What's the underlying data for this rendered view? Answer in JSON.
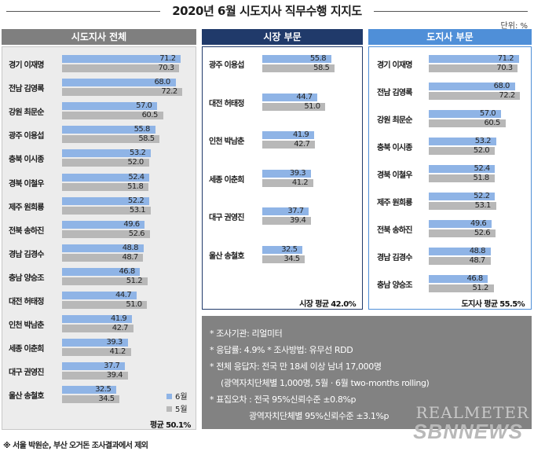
{
  "title": "2020년 6월 시도지사 직무수행 지지도",
  "unit": "단위: %",
  "footnote": "※ 서울 박원순, 부산 오거돈 조사결과에서 제외",
  "watermark_top": "REALMETER",
  "watermark_bottom": "SBNNEWS",
  "colors": {
    "jun": "#8fb4e6",
    "may": "#b8b8b8",
    "mayor_header": "#203a6a",
    "governor_header": "#4f8fd8",
    "overall_header": "#7f7f7f"
  },
  "notes": [
    "* 조사기관: 리얼미터",
    "* 응답률: 4.9% * 조사방법: 유무선 RDD",
    "* 전체 응답자: 전국 만 18세 이상 남녀 17,000명",
    "(광역자치단체별 1,000명, 5월 · 6월 two-months rolling)",
    "* 표집오차 : 전국 95%신뢰수준 ±0.8%p",
    "광역자치단체별 95%신뢰수준 ±3.1%p"
  ],
  "chart_data": [
    {
      "type": "bar",
      "orientation": "horizontal",
      "panel_title": "시도지사 전체",
      "categories": [
        "경기 이재명",
        "전남 김영록",
        "강원 최문순",
        "광주 이용섭",
        "충북 이시종",
        "경북 이철우",
        "제주 원희룡",
        "전북 송하진",
        "경남 김경수",
        "충남 양승조",
        "대전 허태정",
        "인천 박남춘",
        "세종 이춘희",
        "대구 권영진",
        "울산 송철호"
      ],
      "series": [
        {
          "name": "6월",
          "values": [
            71.2,
            68.0,
            57.0,
            55.8,
            53.2,
            52.4,
            52.2,
            49.6,
            48.8,
            46.8,
            44.7,
            41.9,
            39.3,
            37.7,
            32.5
          ]
        },
        {
          "name": "5월",
          "values": [
            70.3,
            72.2,
            60.5,
            58.5,
            52.0,
            51.8,
            53.1,
            52.6,
            48.7,
            51.2,
            51.0,
            42.7,
            41.2,
            39.4,
            34.5
          ]
        }
      ],
      "average_label": "평균 50.1%",
      "legend": [
        "6월",
        "5월"
      ],
      "legend_position": "bottom-right"
    },
    {
      "type": "bar",
      "orientation": "horizontal",
      "panel_title": "시장 부문",
      "categories": [
        "광주 이용섭",
        "대전 허태정",
        "인천 박남춘",
        "세종 이춘희",
        "대구 권영진",
        "울산 송철호"
      ],
      "series": [
        {
          "name": "6월",
          "values": [
            55.8,
            44.7,
            41.9,
            39.3,
            37.7,
            32.5
          ]
        },
        {
          "name": "5월",
          "values": [
            58.5,
            51.0,
            42.7,
            41.2,
            39.4,
            34.5
          ]
        }
      ],
      "average_label": "시장 평균 42.0%"
    },
    {
      "type": "bar",
      "orientation": "horizontal",
      "panel_title": "도지사 부문",
      "categories": [
        "경기 이재명",
        "전남 김영록",
        "강원 최문순",
        "충북 이시종",
        "경북 이철우",
        "제주 원희룡",
        "전북 송하진",
        "경남 김경수",
        "충남 양승조"
      ],
      "series": [
        {
          "name": "6월",
          "values": [
            71.2,
            68.0,
            57.0,
            53.2,
            52.4,
            52.2,
            49.6,
            48.8,
            46.8
          ]
        },
        {
          "name": "5월",
          "values": [
            70.3,
            72.2,
            60.5,
            52.0,
            51.8,
            53.1,
            52.6,
            48.7,
            51.2
          ]
        }
      ],
      "average_label": "도지사 평균 55.5%"
    }
  ]
}
